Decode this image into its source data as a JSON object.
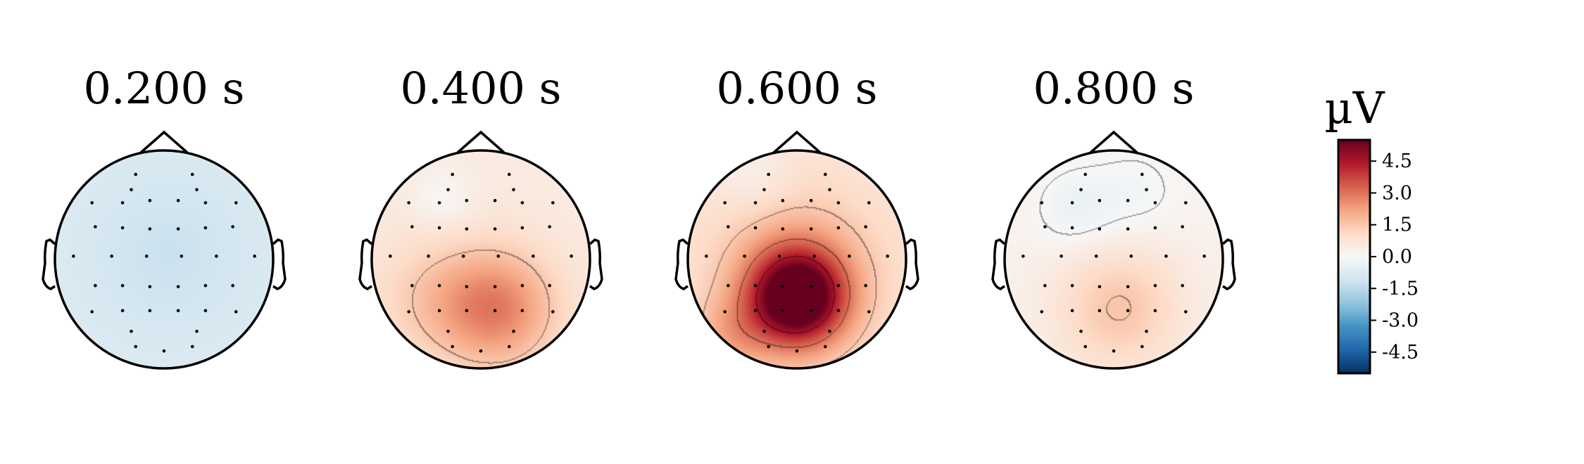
{
  "chart_data": {
    "type": "heatmap",
    "subtype": "eeg-topomap",
    "colormap": "RdBu_r",
    "colorbar": {
      "unit": "µV",
      "range": [
        -5.5,
        5.5
      ],
      "ticks": [
        "4.5",
        "3.0",
        "1.5",
        "0.0",
        "-1.5",
        "-3.0",
        "-4.5"
      ],
      "tick_values": [
        4.5,
        3.0,
        1.5,
        0.0,
        -1.5,
        -3.0,
        -4.5
      ]
    },
    "maps": [
      {
        "title": "0.200 s",
        "time_s": 0.2,
        "baseline": -0.75,
        "blobs": [
          {
            "x": 0.05,
            "y": 0.05,
            "amp": -0.45,
            "sigma": 0.55
          }
        ],
        "contours": []
      },
      {
        "title": "0.400 s",
        "time_s": 0.4,
        "baseline": 0.5,
        "blobs": [
          {
            "x": 0.15,
            "y": -0.45,
            "amp": 2.2,
            "sigma": 0.38
          },
          {
            "x": -0.45,
            "y": -0.35,
            "amp": 0.8,
            "sigma": 0.4
          },
          {
            "x": -0.35,
            "y": 0.55,
            "amp": -0.5,
            "sigma": 0.2
          }
        ],
        "contours": [
          1.5,
          3.0,
          0.0
        ]
      },
      {
        "title": "0.600 s",
        "time_s": 0.6,
        "baseline": 0.6,
        "blobs": [
          {
            "x": 0.0,
            "y": -0.35,
            "amp": 5.2,
            "sigma": 0.3
          },
          {
            "x": 0.0,
            "y": -0.15,
            "amp": 1.6,
            "sigma": 0.55
          },
          {
            "x": -0.6,
            "y": -0.7,
            "amp": 1.0,
            "sigma": 0.25
          },
          {
            "x": -0.4,
            "y": 0.75,
            "amp": -0.5,
            "sigma": 0.25
          }
        ],
        "contours": [
          1.5,
          3.0,
          4.5
        ]
      },
      {
        "title": "0.800 s",
        "time_s": 0.8,
        "baseline": 0.25,
        "blobs": [
          {
            "x": 0.05,
            "y": -0.45,
            "amp": 1.3,
            "sigma": 0.4
          },
          {
            "x": -0.35,
            "y": 0.45,
            "amp": -0.6,
            "sigma": 0.25
          },
          {
            "x": 0.2,
            "y": 0.6,
            "amp": -0.4,
            "sigma": 0.3
          }
        ],
        "contours": [
          0.0,
          1.5
        ]
      }
    ],
    "sensors": [
      [
        -0.26,
        0.78
      ],
      [
        0.26,
        0.78
      ],
      [
        -0.3,
        0.64
      ],
      [
        0.3,
        0.64
      ],
      [
        -0.66,
        0.52
      ],
      [
        -0.38,
        0.52
      ],
      [
        -0.13,
        0.54
      ],
      [
        0.13,
        0.54
      ],
      [
        0.38,
        0.52
      ],
      [
        0.66,
        0.52
      ],
      [
        -0.63,
        0.3
      ],
      [
        -0.38,
        0.29
      ],
      [
        -0.13,
        0.28
      ],
      [
        0.13,
        0.28
      ],
      [
        0.38,
        0.29
      ],
      [
        0.63,
        0.3
      ],
      [
        -0.83,
        0.03
      ],
      [
        -0.48,
        0.03
      ],
      [
        -0.16,
        0.03
      ],
      [
        0.16,
        0.03
      ],
      [
        0.48,
        0.03
      ],
      [
        0.83,
        0.03
      ],
      [
        -0.63,
        -0.24
      ],
      [
        -0.38,
        -0.24
      ],
      [
        -0.13,
        -0.25
      ],
      [
        0.13,
        -0.25
      ],
      [
        0.38,
        -0.24
      ],
      [
        0.63,
        -0.24
      ],
      [
        -0.66,
        -0.48
      ],
      [
        -0.38,
        -0.47
      ],
      [
        -0.13,
        -0.47
      ],
      [
        0.13,
        -0.47
      ],
      [
        0.38,
        -0.47
      ],
      [
        0.66,
        -0.48
      ],
      [
        -0.3,
        -0.66
      ],
      [
        0.3,
        -0.66
      ],
      [
        -0.26,
        -0.8
      ],
      [
        0.0,
        -0.84
      ],
      [
        0.26,
        -0.8
      ]
    ]
  }
}
